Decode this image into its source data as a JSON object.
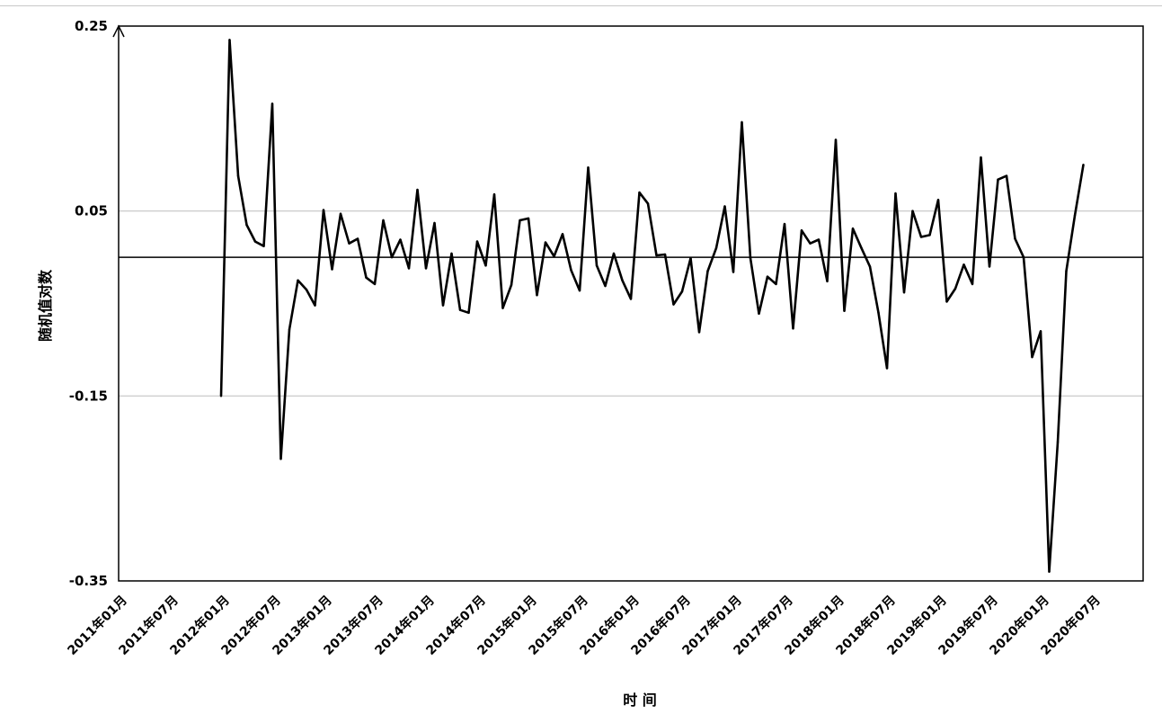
{
  "chart_data": {
    "type": "line",
    "xlabel": "时 间",
    "ylabel": "随机值对数",
    "ylim": [
      -0.35,
      0.25
    ],
    "yticks": [
      "0.25",
      "0.05",
      "-0.15",
      "-0.35"
    ],
    "reference_line": 0,
    "grid": "horizontal",
    "x_start": "2011-01",
    "x_end": "2021-01",
    "x_tick_labels": [
      "2011年01月",
      "2011年07月",
      "2012年01月",
      "2012年07月",
      "2013年01月",
      "2013年07月",
      "2014年01月",
      "2014年07月",
      "2015年01月",
      "2015年07月",
      "2016年01月",
      "2016年07月",
      "2017年01月",
      "2017年07月",
      "2018年01月",
      "2018年07月",
      "2019年01月",
      "2019年07月",
      "2020年01月",
      "2020年07月"
    ],
    "series": [
      {
        "x": [
          "2012-01",
          "2012-02",
          "2012-03",
          "2012-04",
          "2012-05",
          "2012-06",
          "2012-07",
          "2012-08",
          "2012-09",
          "2012-10",
          "2012-11",
          "2012-12",
          "2013-01",
          "2013-02",
          "2013-03",
          "2013-04",
          "2013-05",
          "2013-06",
          "2013-07",
          "2013-08",
          "2013-09",
          "2013-10",
          "2013-11",
          "2013-12",
          "2014-01",
          "2014-02",
          "2014-03",
          "2014-04",
          "2014-05",
          "2014-06",
          "2014-07",
          "2014-08",
          "2014-09",
          "2014-10",
          "2014-11",
          "2014-12",
          "2015-01",
          "2015-02",
          "2015-03",
          "2015-04",
          "2015-05",
          "2015-06",
          "2015-07",
          "2015-08",
          "2015-09",
          "2015-10",
          "2015-11",
          "2015-12",
          "2016-01",
          "2016-02",
          "2016-03",
          "2016-04",
          "2016-05",
          "2016-06",
          "2016-07",
          "2016-08",
          "2016-09",
          "2016-10",
          "2016-11",
          "2016-12",
          "2017-01",
          "2017-02",
          "2017-03",
          "2017-04",
          "2017-05",
          "2017-06",
          "2017-07",
          "2017-08",
          "2017-09",
          "2017-10",
          "2017-11",
          "2017-12",
          "2018-01",
          "2018-02",
          "2018-03",
          "2018-04",
          "2018-05",
          "2018-06",
          "2018-07",
          "2018-08",
          "2018-09",
          "2018-10",
          "2018-11",
          "2018-12",
          "2019-01",
          "2019-02",
          "2019-03",
          "2019-04",
          "2019-05",
          "2019-06",
          "2019-07",
          "2019-08",
          "2019-09",
          "2019-10",
          "2019-11",
          "2019-12",
          "2020-01",
          "2020-02",
          "2020-03",
          "2020-04",
          "2020-05",
          "2020-06"
        ],
        "values": [
          -0.15,
          0.235,
          0.088,
          0.035,
          0.017,
          0.012,
          0.166,
          -0.218,
          -0.078,
          -0.025,
          -0.035,
          -0.052,
          0.051,
          -0.013,
          0.047,
          0.015,
          0.02,
          -0.022,
          -0.029,
          0.04,
          0.0,
          0.019,
          -0.012,
          0.073,
          -0.012,
          0.037,
          -0.052,
          0.004,
          -0.057,
          -0.06,
          0.017,
          -0.009,
          0.068,
          -0.055,
          -0.03,
          0.04,
          0.042,
          -0.041,
          0.016,
          0.001,
          0.025,
          -0.014,
          -0.036,
          0.097,
          -0.009,
          -0.031,
          0.004,
          -0.025,
          -0.045,
          0.07,
          0.058,
          0.002,
          0.003,
          -0.051,
          -0.037,
          -0.001,
          -0.081,
          -0.015,
          0.01,
          0.055,
          -0.016,
          0.146,
          -0.001,
          -0.061,
          -0.021,
          -0.029,
          0.036,
          -0.077,
          0.029,
          0.015,
          0.019,
          -0.026,
          0.127,
          -0.058,
          0.031,
          0.01,
          -0.01,
          -0.06,
          -0.12,
          0.069,
          -0.038,
          0.05,
          0.022,
          0.024,
          0.062,
          -0.048,
          -0.034,
          -0.008,
          -0.029,
          0.108,
          -0.01,
          0.084,
          0.088,
          0.02,
          0.0,
          -0.108,
          -0.08,
          -0.34,
          -0.2,
          -0.015,
          0.045,
          0.1
        ]
      }
    ]
  }
}
